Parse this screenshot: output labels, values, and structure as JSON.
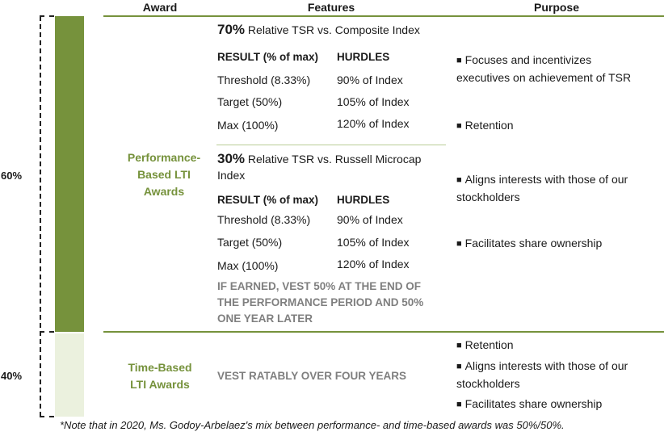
{
  "headers": {
    "award": "Award",
    "features": "Features",
    "purpose": "Purpose"
  },
  "percents": {
    "performance": "60%",
    "time": "40%"
  },
  "awards": {
    "performance": [
      "Performance-",
      "Based LTI",
      "Awards"
    ],
    "time": [
      "Time-Based",
      "LTI Awards"
    ]
  },
  "features": {
    "composite": {
      "pct": "70%",
      "title": "Relative TSR vs. Composite Index",
      "col_result": "RESULT (% of max)",
      "col_hurdles": "HURDLES",
      "rows": [
        {
          "result": "Threshold (8.33%)",
          "hurdle": "90% of Index"
        },
        {
          "result": "Target (50%)",
          "hurdle": "105% of Index"
        },
        {
          "result": "Max (100%)",
          "hurdle": "120% of Index"
        }
      ]
    },
    "russell": {
      "pct": "30%",
      "title_line1": "Relative TSR vs. Russell Microcap",
      "title_line2": "Index",
      "col_result": "RESULT (% of max)",
      "col_hurdles": "HURDLES",
      "rows": [
        {
          "result": "Threshold (8.33%)",
          "hurdle": "90% of Index"
        },
        {
          "result": "Target (50%)",
          "hurdle": "105% of Index"
        },
        {
          "result": "Max (100%)",
          "hurdle": "120% of Index"
        }
      ]
    },
    "vesting_perf": [
      "IF EARNED, VEST 50% AT THE END OF",
      "THE PERFORMANCE PERIOD AND 50%",
      "ONE YEAR LATER"
    ],
    "vesting_time": "VEST RATABLY OVER FOUR YEARS"
  },
  "purpose": {
    "bullet": "■",
    "performance": [
      [
        "Focuses and incentivizes",
        "executives on achievement of TSR"
      ],
      [
        "Retention"
      ],
      [
        "Aligns interests with those of our",
        "stockholders"
      ],
      [
        "Facilitates share ownership"
      ]
    ],
    "time": [
      [
        "Retention"
      ],
      [
        "Aligns interests with those of our",
        "stockholders"
      ],
      [
        "Facilitates share ownership"
      ]
    ]
  },
  "note": "*Note that in 2020, Ms. Godoy-Arbelaez's mix between performance- and time-based awards was 50%/50%."
}
